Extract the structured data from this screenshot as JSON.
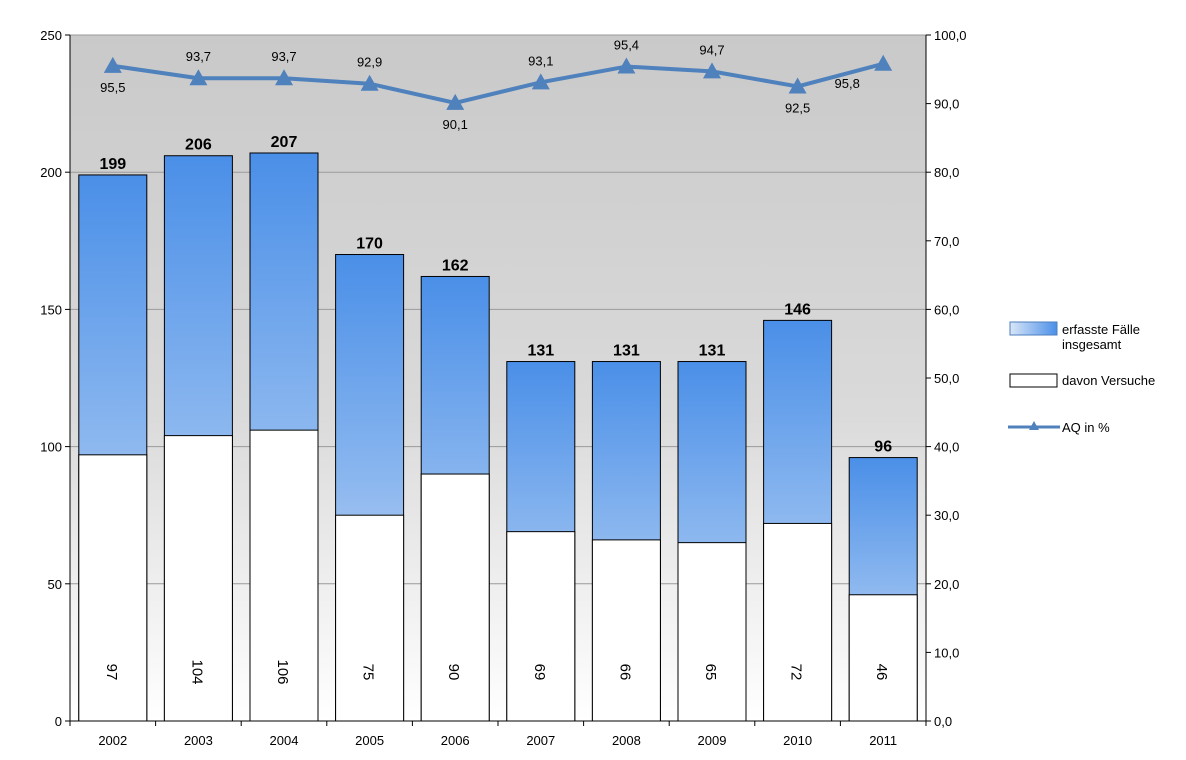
{
  "chart_data": {
    "type": "bar",
    "categories": [
      "2002",
      "2003",
      "2004",
      "2005",
      "2006",
      "2007",
      "2008",
      "2009",
      "2010",
      "2011"
    ],
    "series": [
      {
        "name": "erfasste Fälle insgesamt",
        "type": "bar",
        "axis": "left",
        "values": [
          199,
          206,
          207,
          170,
          162,
          131,
          131,
          131,
          146,
          96
        ],
        "labels": [
          "199",
          "206",
          "207",
          "170",
          "162",
          "131",
          "131",
          "131",
          "146",
          "96"
        ],
        "color": "#4a8fe8"
      },
      {
        "name": "davon Versuche",
        "type": "bar",
        "axis": "left",
        "values": [
          97,
          104,
          106,
          75,
          90,
          69,
          66,
          65,
          72,
          46
        ],
        "labels": [
          "97",
          "104",
          "106",
          "75",
          "90",
          "69",
          "66",
          "65",
          "72",
          "46"
        ],
        "color": "#ffffff"
      },
      {
        "name": "AQ in %",
        "type": "line",
        "axis": "right",
        "values": [
          95.5,
          93.7,
          93.7,
          92.9,
          90.1,
          93.1,
          95.4,
          94.7,
          92.5,
          95.8
        ],
        "labels": [
          "95,5",
          "93,7",
          "93,7",
          "92,9",
          "90,1",
          "93,1",
          "95,4",
          "94,7",
          "92,5",
          "95,8"
        ],
        "color": "#4f81bd"
      }
    ],
    "ylim": [
      0,
      250
    ],
    "y_ticks": [
      "0",
      "50",
      "100",
      "150",
      "200",
      "250"
    ],
    "y2lim": [
      0,
      100
    ],
    "y2_ticks": [
      "0,0",
      "10,0",
      "20,0",
      "30,0",
      "40,0",
      "50,0",
      "60,0",
      "70,0",
      "80,0",
      "90,0",
      "100,0"
    ],
    "grid": true,
    "legend_position": "right",
    "legend": {
      "total_line1": "erfasste Fälle",
      "total_line2": "insgesamt",
      "attempts": "davon Versuche",
      "aq": "AQ in %"
    },
    "title": "",
    "xlabel": "",
    "ylabel": "",
    "y2label": ""
  }
}
